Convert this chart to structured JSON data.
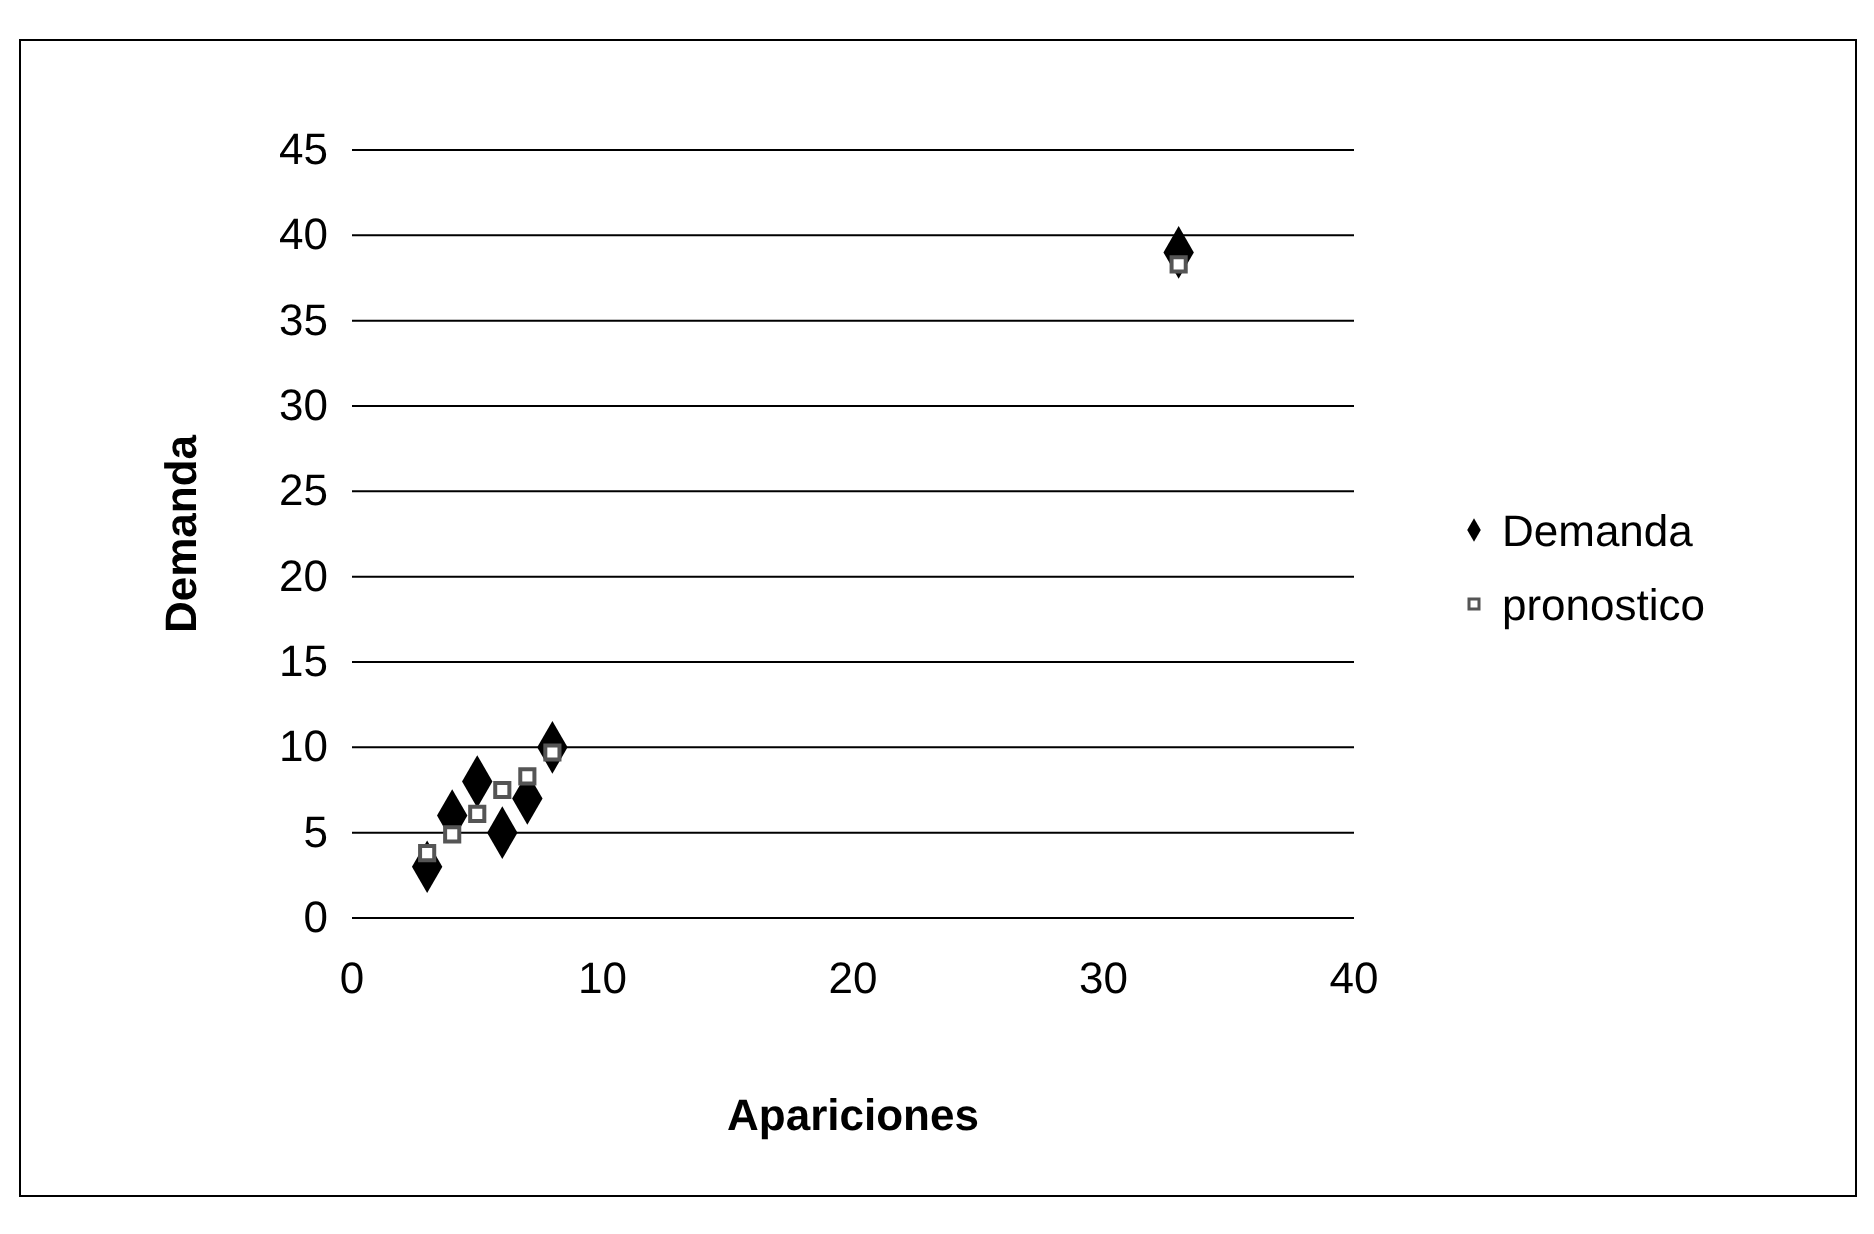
{
  "chart_data": {
    "type": "scatter",
    "xlabel": "Apariciones",
    "ylabel": "Demanda",
    "xlim": [
      0,
      40
    ],
    "xticks": [
      0,
      10,
      20,
      30,
      40
    ],
    "ylim": [
      0,
      45
    ],
    "yticks": [
      0,
      5,
      10,
      15,
      20,
      25,
      30,
      35,
      40,
      45
    ],
    "grid": "y",
    "legend": "right",
    "series": [
      {
        "name": "Demanda",
        "color": "#000000",
        "marker": "diamond",
        "x": [
          3,
          4,
          5,
          6,
          7,
          8,
          33
        ],
        "values": [
          3,
          6,
          8,
          5,
          7,
          10,
          39
        ]
      },
      {
        "name": "pronostico",
        "color": "#555555",
        "marker": "square",
        "x": [
          3,
          4,
          5,
          6,
          7,
          8,
          33
        ],
        "values": [
          3.8,
          4.9,
          6.1,
          7.5,
          8.3,
          9.7,
          38.3
        ]
      }
    ]
  }
}
